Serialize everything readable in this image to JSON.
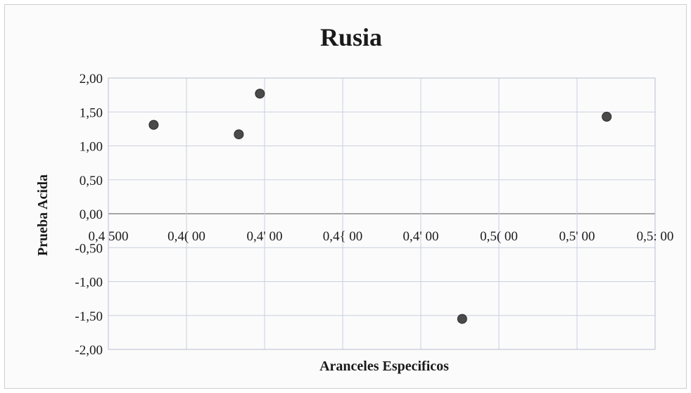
{
  "chart_data": {
    "type": "scatter",
    "title": "Rusia",
    "xlabel": "Aranceles Especificos",
    "ylabel": "Prueba Acida",
    "xlim": [
      0.45,
      0.52
    ],
    "ylim": [
      -2.0,
      2.0
    ],
    "x_ticks": [
      0.45,
      0.46,
      0.47,
      0.48,
      0.49,
      0.5,
      0.51,
      0.52
    ],
    "x_tick_labels": [
      "0,4 500",
      "0,4( 00",
      "0,4' 00",
      "0,4{ 00",
      "0,4' 00",
      "0,5( 00",
      "0,5' 00",
      "0,5: 00"
    ],
    "y_ticks": [
      2.0,
      1.5,
      1.0,
      0.5,
      0.0,
      -0.5,
      -1.0,
      -1.5,
      -2.0
    ],
    "y_tick_labels": [
      "2,00",
      "1,50",
      "1,00",
      "0,50",
      "0,00",
      "-0,50",
      "-1,00",
      "-1,50",
      "-2,00"
    ],
    "grid": true,
    "legend": "none",
    "point_color": "#4a4a4a",
    "series": [
      {
        "points": [
          {
            "x": 0.4558,
            "y": 1.31
          },
          {
            "x": 0.4667,
            "y": 1.17
          },
          {
            "x": 0.4694,
            "y": 1.77
          },
          {
            "x": 0.4953,
            "y": -1.55
          },
          {
            "x": 0.5138,
            "y": 1.43
          }
        ]
      }
    ]
  }
}
